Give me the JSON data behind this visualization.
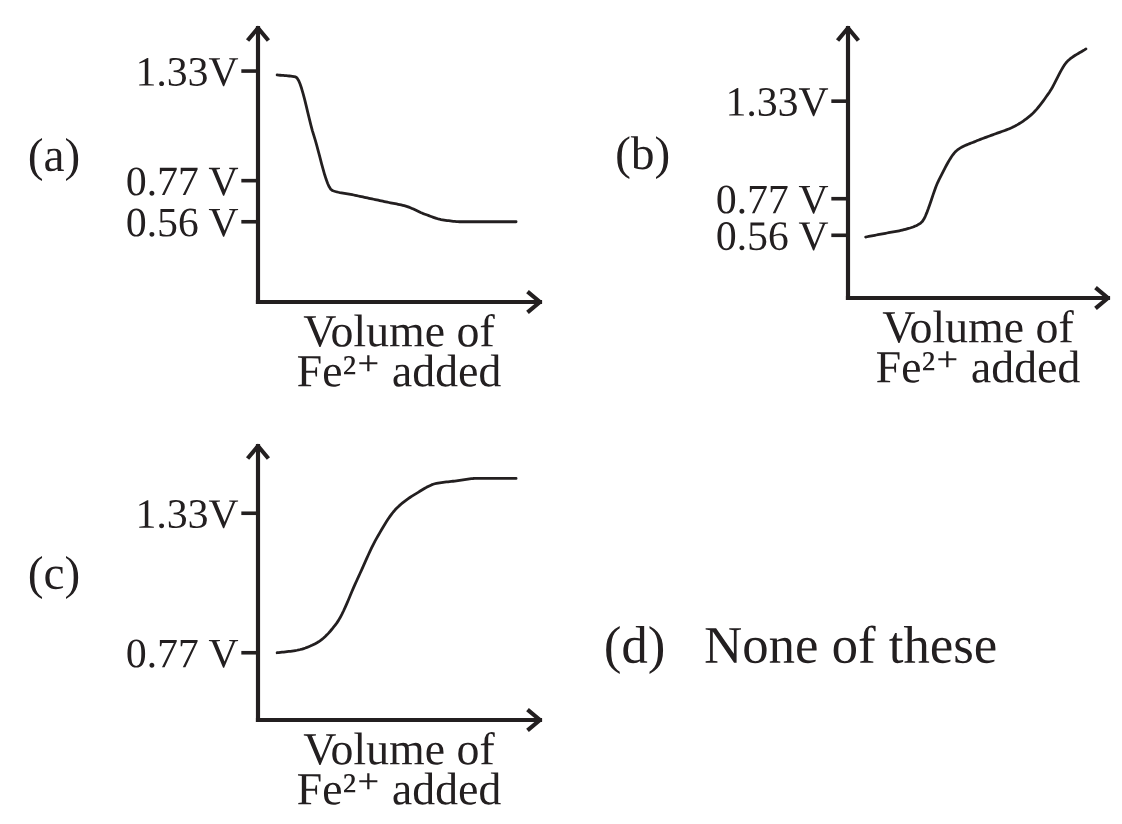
{
  "chart_data": [
    {
      "type": "line",
      "title": "(a)",
      "xlabel": "Volume of\nFe²⁺ added",
      "categories": [
        null,
        null,
        null,
        null,
        null,
        null,
        null,
        null,
        null,
        null,
        null,
        null,
        null,
        null
      ],
      "series": [
        {
          "color": "#231f20",
          "values": [
            1.31,
            1.3,
            1.0,
            0.72,
            0.7,
            0.68,
            0.66,
            0.64,
            0.6,
            0.57,
            0.56,
            0.56,
            0.56,
            0.56
          ]
        }
      ],
      "ylim": [
        0.15,
        1.55
      ],
      "yticks": [
        {
          "value": 0.56,
          "label": "0.56 V"
        },
        {
          "value": 0.77,
          "label": "0.77 V"
        },
        {
          "value": 1.33,
          "label": "1.33V"
        }
      ],
      "marker": "none",
      "line_style": "solid"
    },
    {
      "type": "line",
      "title": "(b)",
      "xlabel": "Volume of\nFe²⁺ added",
      "categories": [
        null,
        null,
        null,
        null,
        null,
        null,
        null,
        null,
        null,
        null,
        null,
        null,
        null
      ],
      "series": [
        {
          "color": "#231f20",
          "values": [
            0.55,
            0.57,
            0.59,
            0.63,
            0.88,
            1.05,
            1.1,
            1.14,
            1.18,
            1.25,
            1.38,
            1.56,
            1.63
          ]
        }
      ],
      "ylim": [
        0.2,
        1.75
      ],
      "yticks": [
        {
          "value": 0.56,
          "label": "0.56 V"
        },
        {
          "value": 0.77,
          "label": "0.77 V"
        },
        {
          "value": 1.33,
          "label": "1.33V"
        }
      ],
      "marker": "none",
      "line_style": "solid"
    },
    {
      "type": "line",
      "title": "(c)",
      "xlabel": "Volume of\nFe²⁺ added",
      "categories": [
        null,
        null,
        null,
        null,
        null,
        null,
        null,
        null,
        null,
        null,
        null,
        null,
        null
      ],
      "series": [
        {
          "color": "#231f20",
          "values": [
            0.77,
            0.78,
            0.81,
            0.89,
            1.06,
            1.23,
            1.35,
            1.41,
            1.45,
            1.46,
            1.47,
            1.47,
            1.47
          ]
        }
      ],
      "ylim": [
        0.5,
        1.6
      ],
      "yticks": [
        {
          "value": 0.77,
          "label": "0.77 V"
        },
        {
          "value": 1.33,
          "label": "1.33V"
        }
      ],
      "marker": "none",
      "line_style": "solid"
    },
    {
      "type": "other",
      "title": "(d)",
      "annotations": [
        "None of these"
      ]
    }
  ]
}
